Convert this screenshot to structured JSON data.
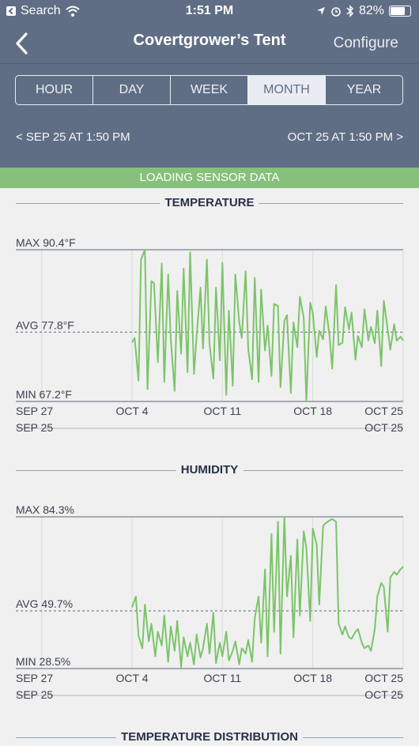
{
  "status_bar": {
    "back_app": "Search",
    "time": "1:51 PM",
    "battery": "82%",
    "battery_level": 0.82
  },
  "nav": {
    "title": "Covertgrower’s Tent",
    "configure": "Configure"
  },
  "tabs": [
    {
      "label": "HOUR",
      "selected": false
    },
    {
      "label": "DAY",
      "selected": false
    },
    {
      "label": "WEEK",
      "selected": false
    },
    {
      "label": "MONTH",
      "selected": true
    },
    {
      "label": "YEAR",
      "selected": false
    }
  ],
  "range": {
    "start": "< SEP 25 AT 1:50 PM",
    "end": "OCT 25 AT 1:50 PM >"
  },
  "loading_text": "LOADING SENSOR DATA",
  "colors": {
    "header": "#5f6e85",
    "loading_bar": "#86c07a",
    "series_line": "#7cc46a"
  },
  "charts": [
    {
      "section_title": "TEMPERATURE",
      "max_label": "MAX 90.4°F",
      "avg_label": "AVG 77.8°F",
      "min_label": "MIN 67.2°F",
      "x_ticks": [
        "SEP 27",
        "OCT 4",
        "OCT 11",
        "OCT 18",
        "OCT 25"
      ],
      "range_start": "SEP 25",
      "range_end": "OCT 25"
    },
    {
      "section_title": "HUMIDITY",
      "max_label": "MAX 84.3%",
      "avg_label": "AVG 49.7%",
      "min_label": "MIN 28.5%",
      "x_ticks": [
        "SEP 27",
        "OCT 4",
        "OCT 11",
        "OCT 18",
        "OCT 25"
      ],
      "range_start": "SEP 25",
      "range_end": "OCT 25"
    },
    {
      "section_title": "TEMPERATURE DISTRIBUTION"
    }
  ],
  "chart_data": [
    {
      "type": "line",
      "title": "TEMPERATURE",
      "x_range": [
        "Sep 25",
        "Oct 25"
      ],
      "y_range": [
        67.2,
        90.4
      ],
      "avg": 77.8,
      "series": [
        {
          "x": [
            9.0,
            9.2,
            9.5,
            9.7,
            10.0,
            10.2,
            10.5,
            10.7,
            11.0,
            11.3,
            11.5,
            11.8,
            12.0,
            12.3,
            12.5,
            12.8,
            13.0,
            13.3,
            13.5,
            13.8,
            14.0,
            14.3,
            14.5,
            14.8,
            15.0,
            15.3,
            15.5,
            15.8,
            16.0,
            16.3,
            16.5,
            16.8,
            17.0,
            17.3,
            17.5,
            17.8,
            18.0,
            18.3,
            18.5,
            18.8,
            19.0,
            19.3,
            19.5,
            19.8,
            20.0,
            20.3,
            20.5,
            20.8,
            21.0,
            21.3,
            21.5,
            21.8,
            22.0,
            22.3,
            22.5,
            22.8,
            23.0,
            23.3,
            23.5,
            23.8,
            24.0,
            24.3,
            24.5,
            24.8,
            25.0,
            25.3,
            25.5,
            25.8,
            26.0,
            26.3,
            26.5,
            26.8,
            27.0,
            27.3,
            27.5,
            27.8,
            28.0,
            28.3,
            28.5,
            28.8,
            29.0,
            29.3,
            29.5,
            29.8,
            30.0
          ],
          "y": [
            76.2,
            76.9,
            70.4,
            88.9,
            90.4,
            69.1,
            85.6,
            85.3,
            73.2,
            88.3,
            70.2,
            86.6,
            76.7,
            68.8,
            84.1,
            74.5,
            87.5,
            71.7,
            90.0,
            71.4,
            77.2,
            84.6,
            75.3,
            88.9,
            76.0,
            70.7,
            84.6,
            73.5,
            88.4,
            68.2,
            81.1,
            69.6,
            86.6,
            79.3,
            76.9,
            87.1,
            75.2,
            70.6,
            86.1,
            70.2,
            84.3,
            75.0,
            78.8,
            71.1,
            82.1,
            81.8,
            69.4,
            79.5,
            80.4,
            68.5,
            79.3,
            75.5,
            83.2,
            80.0,
            67.2,
            82.3,
            80.7,
            74.0,
            78.0,
            76.7,
            81.7,
            77.2,
            72.2,
            85.0,
            75.8,
            76.2,
            81.6,
            78.2,
            80.8,
            73.6,
            77.2,
            75.5,
            81.3,
            76.5,
            78.6,
            76.1,
            81.1,
            72.6,
            82.6,
            78.2,
            75.1,
            79.0,
            76.5,
            77.1,
            76.5
          ]
        }
      ]
    },
    {
      "type": "line",
      "title": "HUMIDITY",
      "x_range": [
        "Sep 25",
        "Oct 25"
      ],
      "y_range": [
        28.5,
        84.3
      ],
      "avg": 49.7,
      "series": [
        {
          "x": [
            9.0,
            9.3,
            9.5,
            9.8,
            10.0,
            10.3,
            10.5,
            10.8,
            11.0,
            11.3,
            11.5,
            11.8,
            12.0,
            12.3,
            12.5,
            12.8,
            13.0,
            13.3,
            13.5,
            13.8,
            14.0,
            14.3,
            14.5,
            14.8,
            15.0,
            15.3,
            15.5,
            15.8,
            16.0,
            16.3,
            16.5,
            16.8,
            17.0,
            17.3,
            17.5,
            17.8,
            18.0,
            18.3,
            18.5,
            18.8,
            19.0,
            19.3,
            19.5,
            19.8,
            20.0,
            20.3,
            20.5,
            20.8,
            21.0,
            21.3,
            21.5,
            21.8,
            22.0,
            22.3,
            22.5,
            22.8,
            23.0,
            23.3,
            23.5,
            23.8,
            24.0,
            24.3,
            24.5,
            24.8,
            25.0,
            25.3,
            25.5,
            25.8,
            26.0,
            26.3,
            26.5,
            26.8,
            27.0,
            27.3,
            27.5,
            27.8,
            28.0,
            28.3,
            28.5,
            28.8,
            29.0,
            29.3,
            29.5,
            29.8,
            30.0
          ],
          "y": [
            51.0,
            55.0,
            40.5,
            36.0,
            52.0,
            38.5,
            45.0,
            33.0,
            42.0,
            37.0,
            48.0,
            31.0,
            44.0,
            35.0,
            46.0,
            29.0,
            40.0,
            33.0,
            38.0,
            30.0,
            41.0,
            32.5,
            36.0,
            45.0,
            34.0,
            49.0,
            30.5,
            38.0,
            33.0,
            42.0,
            31.5,
            35.0,
            38.5,
            30.0,
            36.0,
            34.0,
            39.0,
            31.0,
            47.0,
            55.0,
            38.0,
            65.0,
            33.0,
            78.0,
            42.0,
            82.5,
            34.0,
            84.3,
            55.0,
            70.0,
            40.0,
            76.0,
            48.0,
            79.0,
            73.0,
            46.0,
            80.0,
            74.0,
            52.0,
            81.0,
            82.0,
            83.0,
            83.5,
            82.5,
            45.0,
            41.0,
            44.0,
            40.0,
            39.5,
            42.0,
            43.0,
            38.0,
            36.0,
            37.0,
            35.0,
            43.0,
            55.0,
            60.0,
            58.5,
            42.0,
            62.0,
            64.0,
            63.0,
            65.0,
            66.0
          ]
        }
      ]
    }
  ]
}
